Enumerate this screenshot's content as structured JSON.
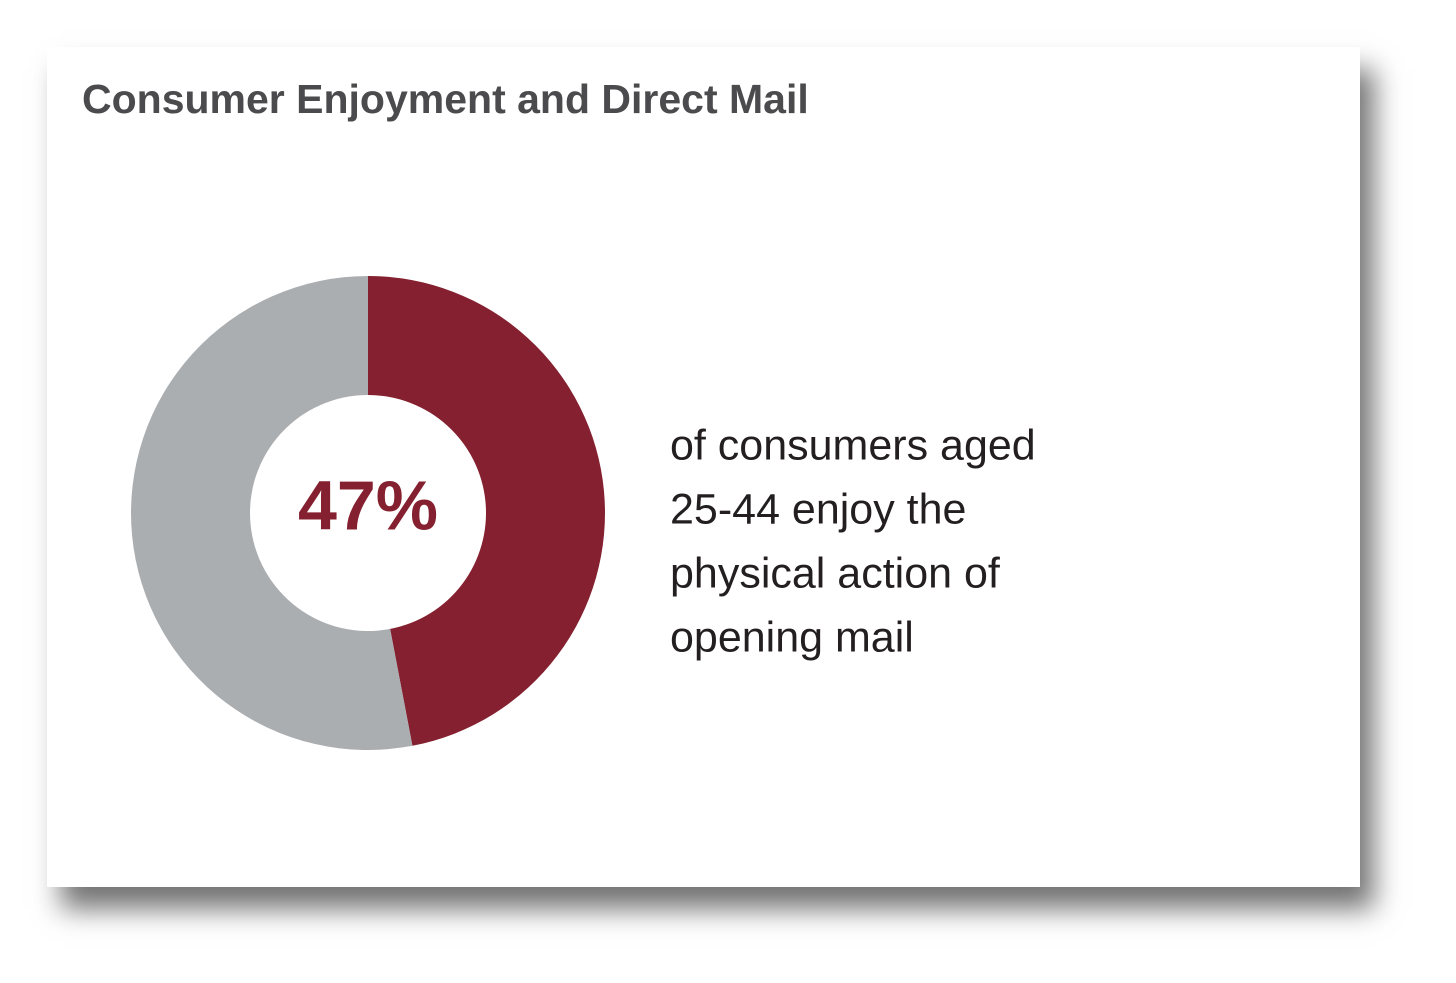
{
  "chart_data": {
    "type": "donut",
    "title": "Consumer Enjoyment and Direct Mail",
    "values": [
      47,
      53
    ],
    "value_labels": [
      "47%",
      null
    ],
    "colors": [
      "#84202f",
      "#abaeb1"
    ],
    "annotation": [
      "of consumers aged",
      "25-44 enjoy the",
      "physical action of",
      "opening mail"
    ]
  }
}
